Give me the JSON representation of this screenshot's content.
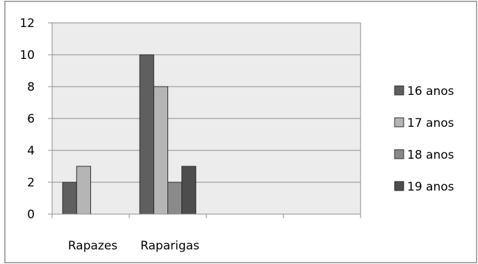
{
  "chart_data": {
    "type": "bar",
    "title": "",
    "xlabel": "",
    "ylabel": "",
    "categories": [
      "Rapazes",
      "Raparigas",
      "",
      ""
    ],
    "series": [
      {
        "name": "16 anos",
        "color": "#5f5f5f",
        "values": [
          2,
          10,
          null,
          null
        ]
      },
      {
        "name": "17 anos",
        "color": "#b5b5b5",
        "values": [
          3,
          8,
          null,
          null
        ]
      },
      {
        "name": "18 anos",
        "color": "#8a8a8a",
        "values": [
          null,
          2,
          null,
          null
        ]
      },
      {
        "name": "19 anos",
        "color": "#4d4d4d",
        "values": [
          null,
          3,
          null,
          null
        ]
      }
    ],
    "ylim": [
      0,
      12
    ],
    "yticks": [
      0,
      2,
      4,
      6,
      8,
      10,
      12
    ],
    "grid": true,
    "legend_position": "right",
    "plot_background": "#ececec"
  }
}
